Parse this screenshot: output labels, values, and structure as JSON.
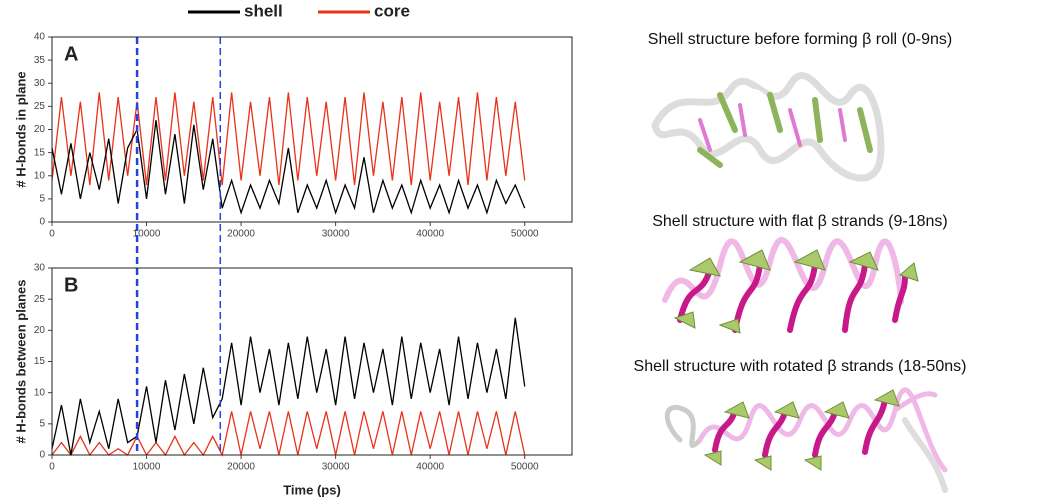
{
  "chart_data": [
    {
      "type": "line",
      "panel_label": "A",
      "ylabel": "# H-bonds in plane",
      "x": [
        0,
        1000,
        2000,
        3000,
        4000,
        5000,
        6000,
        7000,
        8000,
        9000,
        10000,
        11000,
        12000,
        13000,
        14000,
        15000,
        16000,
        17000,
        18000,
        19000,
        20000,
        21000,
        22000,
        23000,
        24000,
        25000,
        26000,
        27000,
        28000,
        29000,
        30000,
        31000,
        32000,
        33000,
        34000,
        35000,
        36000,
        37000,
        38000,
        39000,
        40000,
        41000,
        42000,
        43000,
        44000,
        45000,
        46000,
        47000,
        48000,
        49000,
        50000
      ],
      "series": [
        {
          "name": "core",
          "color": "#e8321a",
          "values": [
            9,
            27,
            10,
            26,
            8,
            28,
            9,
            27,
            10,
            26,
            8,
            27,
            9,
            28,
            10,
            26,
            9,
            27,
            8,
            28,
            9,
            26,
            10,
            27,
            8,
            28,
            9,
            27,
            10,
            26,
            9,
            27,
            8,
            28,
            10,
            26,
            9,
            27,
            8,
            28,
            9,
            26,
            10,
            27,
            8,
            28,
            9,
            27,
            10,
            26,
            9
          ]
        },
        {
          "name": "shell",
          "color": "#000000",
          "values": [
            16,
            6,
            17,
            5,
            15,
            7,
            18,
            4,
            16,
            20,
            5,
            22,
            6,
            19,
            4,
            21,
            7,
            18,
            3,
            9,
            2,
            8,
            3,
            9,
            4,
            16,
            2,
            8,
            3,
            9,
            2,
            8,
            3,
            14,
            2,
            9,
            3,
            8,
            2,
            9,
            3,
            8,
            2,
            9,
            3,
            8,
            2,
            9,
            4,
            8,
            3
          ]
        }
      ],
      "legend": "top",
      "vlines": [
        9000,
        17800
      ],
      "vline_color": "#2244dd",
      "xlim": [
        0,
        55000
      ],
      "xticks": [
        0,
        10000,
        20000,
        30000,
        40000,
        50000
      ],
      "ylim": [
        0,
        40
      ],
      "yticks": [
        0,
        5,
        10,
        15,
        20,
        25,
        30,
        35,
        40
      ]
    },
    {
      "type": "line",
      "panel_label": "B",
      "ylabel": "# H-bonds between planes",
      "xlabel": "Time (ps)",
      "x": [
        0,
        1000,
        2000,
        3000,
        4000,
        5000,
        6000,
        7000,
        8000,
        9000,
        10000,
        11000,
        12000,
        13000,
        14000,
        15000,
        16000,
        17000,
        18000,
        19000,
        20000,
        21000,
        22000,
        23000,
        24000,
        25000,
        26000,
        27000,
        28000,
        29000,
        30000,
        31000,
        32000,
        33000,
        34000,
        35000,
        36000,
        37000,
        38000,
        39000,
        40000,
        41000,
        42000,
        43000,
        44000,
        45000,
        46000,
        47000,
        48000,
        49000,
        50000
      ],
      "series": [
        {
          "color": "#e8321a",
          "values": [
            0,
            2,
            0,
            3,
            0,
            2,
            0,
            1,
            0,
            3,
            0,
            2,
            0,
            3,
            0,
            2,
            0,
            3,
            0,
            7,
            0,
            7,
            1,
            7,
            0,
            7,
            0,
            7,
            1,
            7,
            0,
            7,
            0,
            7,
            1,
            7,
            0,
            7,
            0,
            7,
            1,
            7,
            0,
            7,
            0,
            7,
            1,
            7,
            0,
            7,
            0
          ]
        },
        {
          "color": "#000000",
          "values": [
            1,
            8,
            0,
            9,
            2,
            7,
            1,
            9,
            2,
            3,
            11,
            2,
            12,
            4,
            13,
            5,
            14,
            6,
            9,
            18,
            8,
            19,
            10,
            17,
            8,
            18,
            9,
            19,
            10,
            17,
            8,
            19,
            9,
            18,
            10,
            17,
            8,
            19,
            9,
            18,
            10,
            17,
            8,
            19,
            9,
            18,
            10,
            17,
            9,
            22,
            11
          ]
        }
      ],
      "vlines": [
        9000,
        17800
      ],
      "vline_color": "#2244dd",
      "xlim": [
        0,
        55000
      ],
      "xticks": [
        0,
        10000,
        20000,
        30000,
        40000,
        50000
      ],
      "ylim": [
        0,
        30
      ],
      "yticks": [
        0,
        5,
        10,
        15,
        20,
        25,
        30
      ]
    }
  ],
  "structures": [
    {
      "caption": "Shell structure before forming β roll (0-9ns)"
    },
    {
      "caption": "Shell structure with flat β strands (9-18ns)"
    },
    {
      "caption": "Shell structure with rotated β strands (18-50ns)"
    }
  ]
}
